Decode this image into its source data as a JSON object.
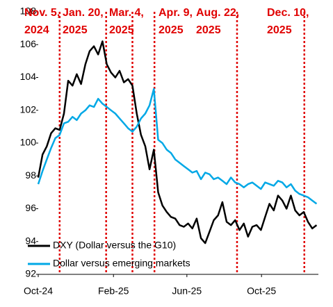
{
  "chart_data": {
    "type": "line",
    "x": [
      0,
      7,
      14,
      21,
      28,
      35,
      42,
      49,
      56,
      63,
      70,
      77,
      84,
      91,
      98,
      105,
      112,
      119,
      126,
      133,
      140,
      147,
      154,
      161,
      168,
      175,
      182,
      189,
      196,
      203,
      210,
      217,
      224,
      231,
      238,
      245,
      252,
      259,
      266,
      273,
      280,
      287,
      294,
      301,
      308,
      315,
      322,
      329,
      336,
      343,
      350,
      357,
      364,
      371,
      378,
      385,
      392,
      399,
      406,
      413,
      420,
      427,
      434,
      441,
      448,
      455
    ],
    "series": [
      {
        "name": "DXY (Dollar versus the G10)",
        "color": "#000000",
        "values": [
          97.9,
          99.3,
          99.8,
          100.6,
          100.9,
          100.8,
          101.8,
          103.8,
          103.5,
          104.2,
          103.6,
          104.8,
          105.6,
          105.9,
          105.4,
          106.2,
          104.8,
          104.3,
          104.0,
          104.4,
          103.7,
          103.9,
          103.5,
          101.8,
          100.5,
          99.8,
          98.4,
          99.6,
          97.0,
          96.2,
          95.8,
          95.5,
          95.4,
          95.0,
          94.9,
          95.1,
          94.8,
          95.4,
          94.2,
          93.9,
          94.6,
          95.3,
          95.6,
          96.4,
          95.2,
          95.0,
          95.3,
          94.7,
          95.1,
          94.3,
          94.9,
          95.0,
          94.7,
          95.5,
          96.3,
          95.9,
          96.8,
          96.5,
          96.0,
          96.8,
          95.9,
          95.6,
          95.8,
          95.2,
          94.8,
          95.0
        ]
      },
      {
        "name": "Dollar versus emerging markets",
        "color": "#00a8e6",
        "values": [
          97.5,
          98.3,
          99.0,
          99.7,
          100.3,
          100.5,
          101.2,
          101.3,
          101.6,
          101.4,
          101.8,
          102.0,
          102.3,
          102.2,
          102.7,
          102.4,
          102.2,
          102.0,
          101.8,
          101.5,
          101.2,
          100.9,
          100.7,
          101.0,
          101.5,
          101.8,
          102.3,
          103.3,
          100.2,
          100.0,
          99.6,
          99.4,
          99.0,
          98.8,
          98.6,
          98.4,
          98.2,
          98.3,
          97.8,
          98.2,
          98.1,
          97.8,
          97.9,
          97.7,
          97.5,
          97.9,
          97.6,
          97.5,
          97.3,
          97.5,
          97.6,
          97.4,
          97.2,
          97.6,
          97.5,
          97.4,
          97.7,
          97.6,
          97.3,
          97.5,
          97.1,
          96.9,
          96.8,
          96.7,
          96.5,
          96.3
        ]
      }
    ],
    "xlim": [
      0,
      458
    ],
    "xticks": [
      {
        "value": 0,
        "label": "Oct-24"
      },
      {
        "value": 123,
        "label": "Feb-25"
      },
      {
        "value": 243,
        "label": "Jun-25"
      },
      {
        "value": 365,
        "label": "Oct-25"
      }
    ],
    "ylim": [
      92,
      108
    ],
    "yticks": [
      92,
      94,
      96,
      98,
      100,
      102,
      104,
      106,
      108
    ],
    "grid": false,
    "legend": "lower left",
    "annotations": [
      {
        "x": 35,
        "lines": [
          "Nov. 5,",
          "2024"
        ]
      },
      {
        "x": 111,
        "lines": [
          "Jan. 20,",
          "2025"
        ]
      },
      {
        "x": 154,
        "lines": [
          "Mar. 4,",
          "2025"
        ]
      },
      {
        "x": 190,
        "lines": [
          "Apr. 9,",
          "2025"
        ]
      },
      {
        "x": 325,
        "lines": [
          "Aug. 22,",
          "2025"
        ]
      },
      {
        "x": 435,
        "lines": [
          "Dec. 10,",
          "2025"
        ]
      }
    ],
    "annotation_color": "#e00000"
  }
}
